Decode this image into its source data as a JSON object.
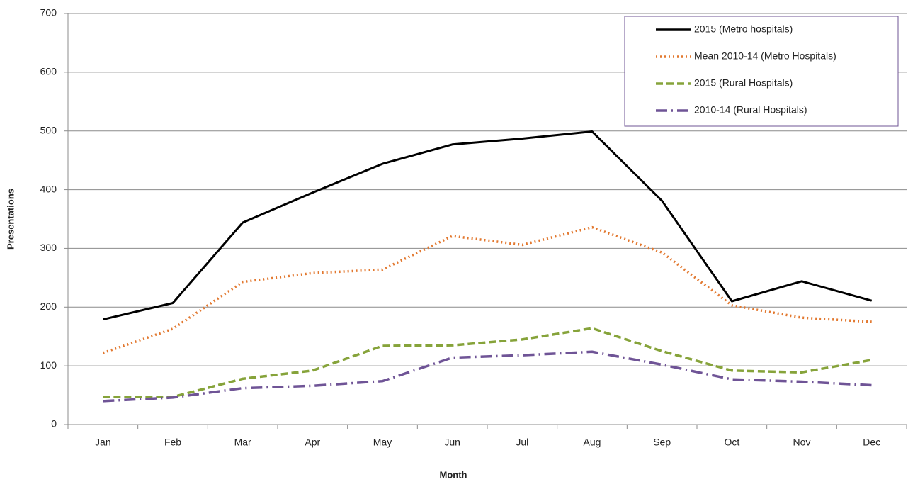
{
  "chart_data": {
    "type": "line",
    "x_label": "Month",
    "y_label": "Presentations",
    "categories": [
      "Jan",
      "Feb",
      "Mar",
      "Apr",
      "May",
      "Jun",
      "Jul",
      "Aug",
      "Sep",
      "Oct",
      "Nov",
      "Dec"
    ],
    "series": [
      {
        "name": "2015 (Metro hospitals)",
        "color": "#000000",
        "style": "solid",
        "values": [
          179,
          207,
          344,
          395,
          444,
          477,
          487,
          499,
          381,
          210,
          244,
          211
        ]
      },
      {
        "name": "Mean 2010-14 (Metro Hospitals)",
        "color": "#e2782f",
        "style": "dotted",
        "values": [
          122,
          163,
          243,
          258,
          264,
          321,
          306,
          336,
          293,
          203,
          182,
          175
        ]
      },
      {
        "name": "2015 (Rural Hospitals)",
        "color": "#86a33a",
        "style": "dashed",
        "values": [
          47,
          47,
          78,
          92,
          134,
          135,
          145,
          164,
          125,
          92,
          89,
          110
        ]
      },
      {
        "name": "2010-14 (Rural Hospitals)",
        "color": "#6f5496",
        "style": "dashdot",
        "values": [
          40,
          46,
          62,
          66,
          74,
          114,
          118,
          124,
          102,
          77,
          73,
          67
        ]
      }
    ],
    "ylim": [
      0,
      700
    ],
    "yticks": [
      0,
      100,
      200,
      300,
      400,
      500,
      600,
      700
    ],
    "grid": true,
    "legend": "upper right"
  }
}
